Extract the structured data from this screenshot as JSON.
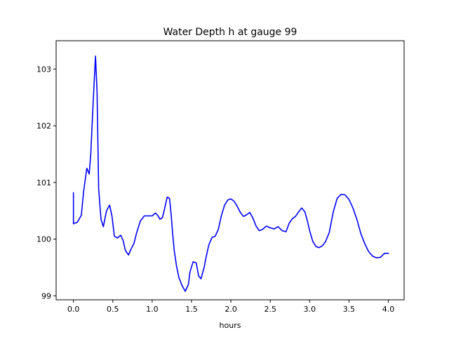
{
  "chart_data": {
    "type": "line",
    "title": "Water Depth h at gauge 99",
    "xlabel": "hours",
    "ylabel": "",
    "xlim": [
      -0.22,
      4.2
    ],
    "ylim": [
      98.93,
      103.5
    ],
    "x_ticks": [
      0.0,
      0.5,
      1.0,
      1.5,
      2.0,
      2.5,
      3.0,
      3.5,
      4.0
    ],
    "x_tick_labels": [
      "0.0",
      "0.5",
      "1.0",
      "1.5",
      "2.0",
      "2.5",
      "3.0",
      "3.5",
      "4.0"
    ],
    "y_ticks": [
      99,
      100,
      101,
      102,
      103
    ],
    "y_tick_labels": [
      "99",
      "100",
      "101",
      "102",
      "103"
    ],
    "grid": false,
    "legend": "none",
    "series": [
      {
        "color": "#0000ff",
        "x": [
          0.0,
          0.0,
          0.05,
          0.1,
          0.13,
          0.17,
          0.2,
          0.22,
          0.25,
          0.28,
          0.3,
          0.32,
          0.35,
          0.38,
          0.42,
          0.46,
          0.49,
          0.52,
          0.56,
          0.6,
          0.63,
          0.66,
          0.7,
          0.73,
          0.77,
          0.8,
          0.85,
          0.9,
          0.95,
          1.0,
          1.04,
          1.07,
          1.1,
          1.13,
          1.16,
          1.19,
          1.22,
          1.24,
          1.26,
          1.28,
          1.31,
          1.34,
          1.38,
          1.42,
          1.46,
          1.48,
          1.52,
          1.56,
          1.59,
          1.62,
          1.66,
          1.68,
          1.72,
          1.76,
          1.8,
          1.84,
          1.88,
          1.92,
          1.96,
          2.0,
          2.04,
          2.08,
          2.12,
          2.16,
          2.2,
          2.24,
          2.28,
          2.32,
          2.36,
          2.4,
          2.45,
          2.5,
          2.55,
          2.6,
          2.65,
          2.7,
          2.74,
          2.78,
          2.82,
          2.86,
          2.9,
          2.94,
          2.97,
          3.0,
          3.04,
          3.08,
          3.12,
          3.16,
          3.2,
          3.25,
          3.3,
          3.35,
          3.4,
          3.45,
          3.5,
          3.55,
          3.6,
          3.65,
          3.7,
          3.75,
          3.8,
          3.85,
          3.9,
          3.95,
          4.0
        ],
        "y": [
          100.82,
          100.27,
          100.3,
          100.42,
          100.85,
          101.25,
          101.15,
          101.5,
          102.4,
          103.23,
          102.6,
          100.9,
          100.35,
          100.22,
          100.5,
          100.6,
          100.4,
          100.05,
          100.02,
          100.07,
          99.98,
          99.8,
          99.72,
          99.82,
          99.93,
          100.1,
          100.32,
          100.41,
          100.41,
          100.41,
          100.46,
          100.42,
          100.35,
          100.38,
          100.55,
          100.74,
          100.72,
          100.45,
          100.1,
          99.8,
          99.52,
          99.32,
          99.18,
          99.08,
          99.2,
          99.42,
          99.6,
          99.58,
          99.35,
          99.3,
          99.5,
          99.65,
          99.9,
          100.03,
          100.05,
          100.17,
          100.42,
          100.6,
          100.69,
          100.71,
          100.67,
          100.58,
          100.47,
          100.4,
          100.43,
          100.47,
          100.37,
          100.23,
          100.15,
          100.17,
          100.23,
          100.2,
          100.18,
          100.22,
          100.15,
          100.13,
          100.28,
          100.36,
          100.4,
          100.48,
          100.55,
          100.48,
          100.33,
          100.15,
          99.96,
          99.87,
          99.85,
          99.88,
          99.95,
          100.12,
          100.48,
          100.72,
          100.79,
          100.78,
          100.7,
          100.55,
          100.35,
          100.1,
          99.92,
          99.78,
          99.7,
          99.67,
          99.68,
          99.75,
          99.75
        ]
      }
    ]
  }
}
